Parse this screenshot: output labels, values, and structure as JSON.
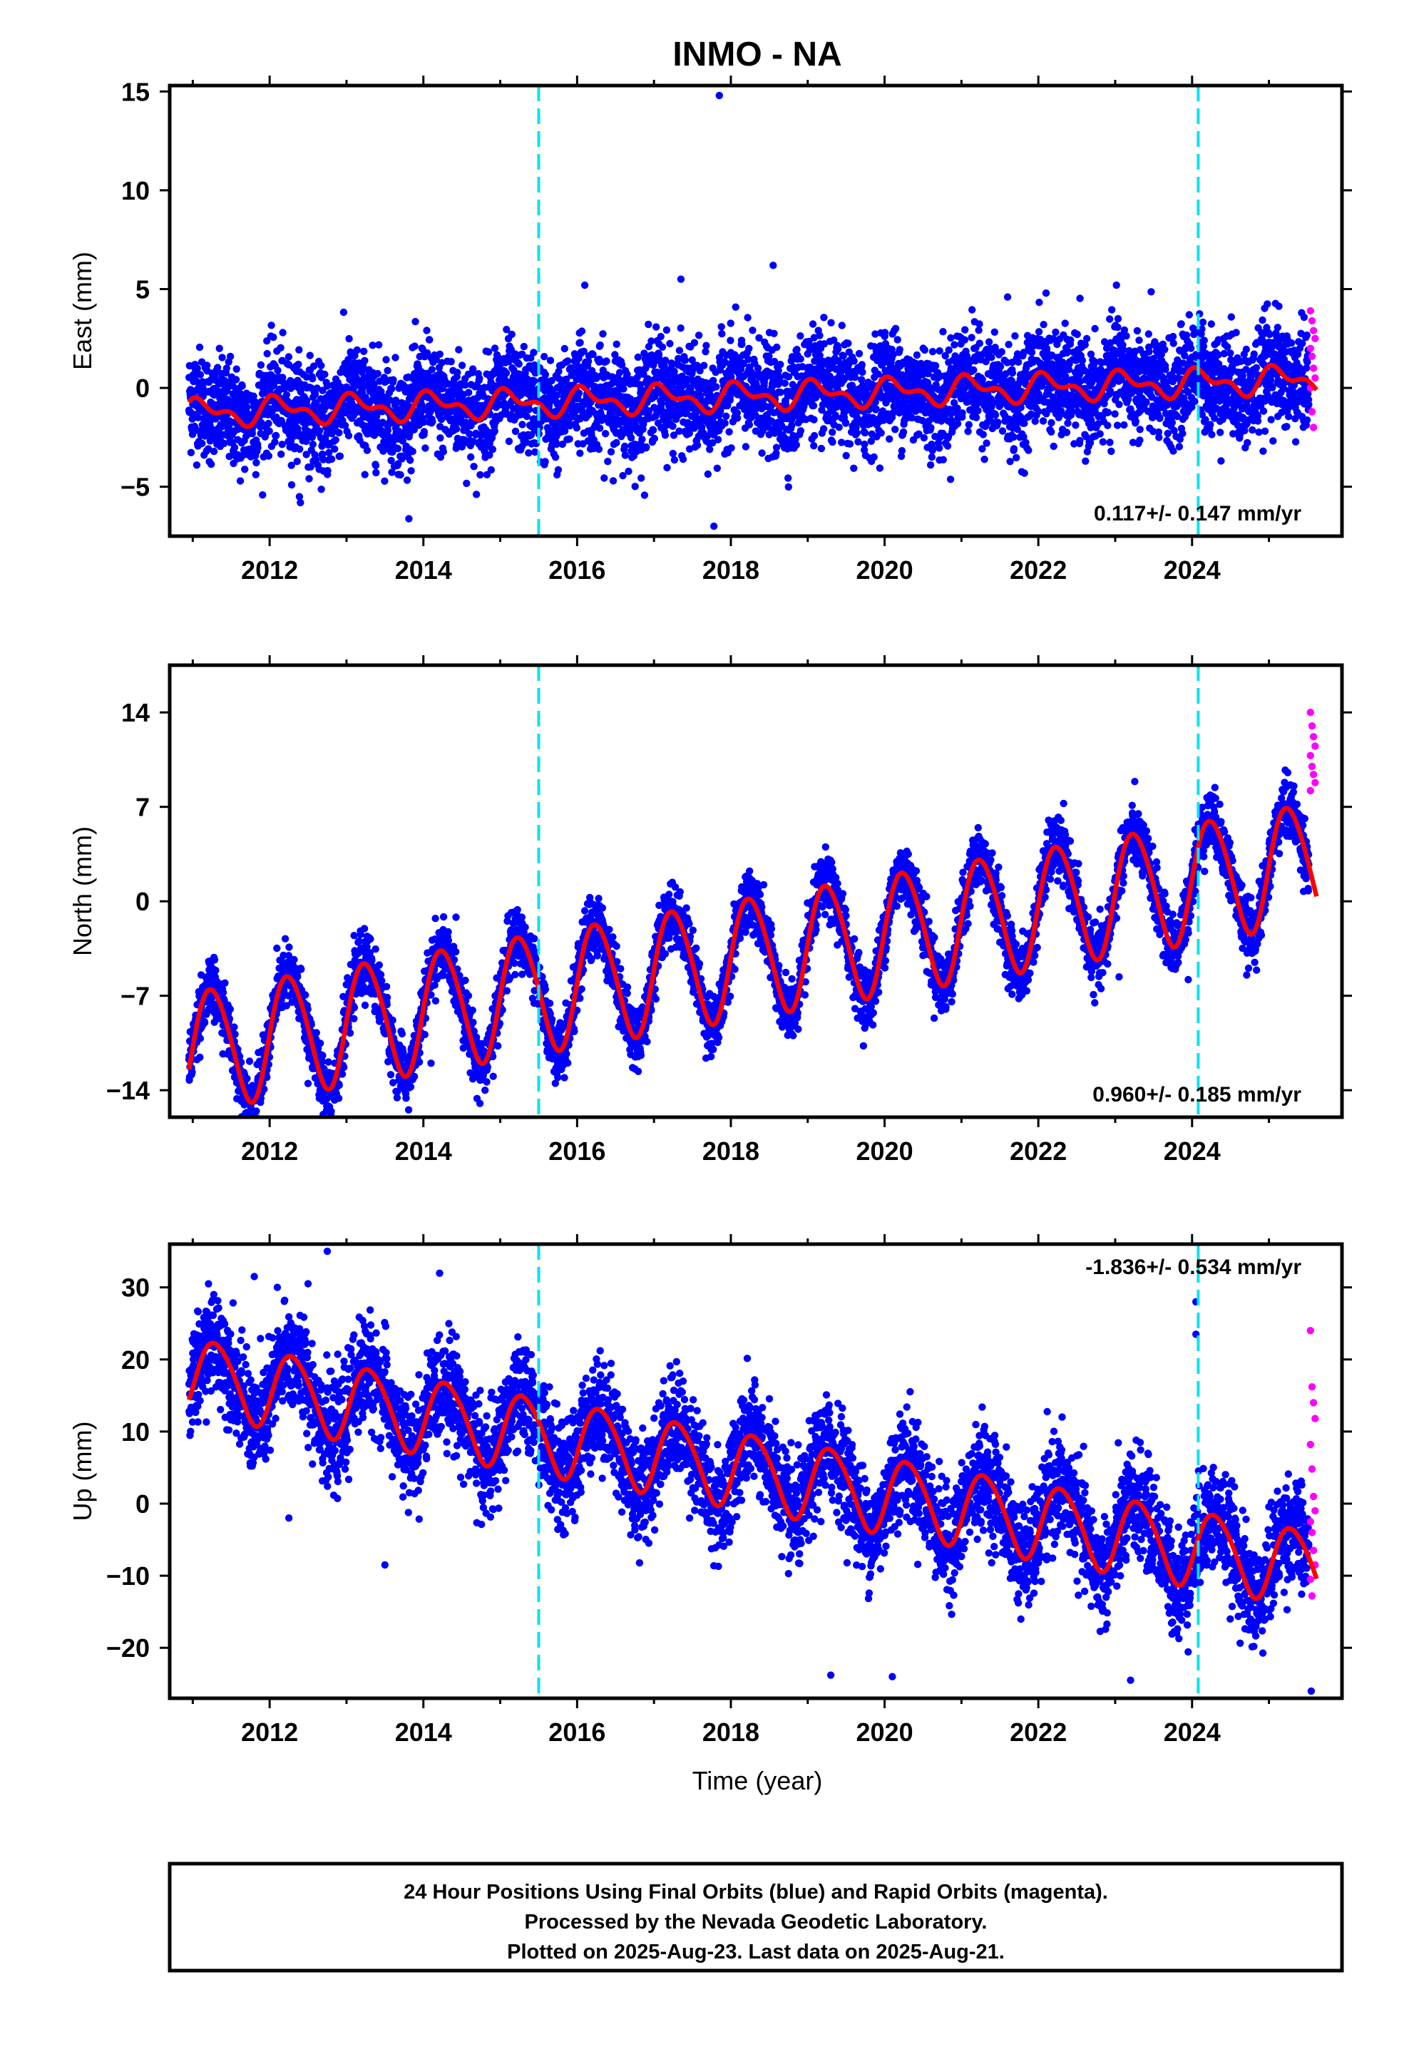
{
  "title": "INMO - NA",
  "xlabel": "Time (year)",
  "caption": [
    "24 Hour Positions Using Final Orbits (blue) and Rapid Orbits (magenta).",
    "Processed by the Nevada Geodetic Laboratory.",
    "Plotted on 2025-Aug-23. Last data on 2025-Aug-21."
  ],
  "colors": {
    "final_orbits": "#0000ff",
    "rapid_orbits": "#ff00ff",
    "model": "#ff0000",
    "equipment_change": "#00e5ee"
  },
  "chart_data": [
    {
      "type": "scatter",
      "panel": "east",
      "ylabel": "East (mm)",
      "ylim": [
        -7.5,
        15.3
      ],
      "yticks": [
        -5,
        0,
        5,
        10,
        15
      ],
      "xlim": [
        2010.7,
        2025.95
      ],
      "xticks": [
        2012,
        2014,
        2016,
        2018,
        2020,
        2022,
        2024
      ],
      "rate_label": "0.117+/- 0.147 mm/yr",
      "rate_position": "bottom-right",
      "model": {
        "intercept": -0.45,
        "slope": 0.117,
        "annual_amp": 0.55,
        "annual_phase": 0.8,
        "semiannual_amp": 0.35,
        "semiannual_phase": 1.6,
        "noise": 1.3
      },
      "outliers": [
        [
          2017.85,
          14.8
        ],
        [
          2018.55,
          6.2
        ],
        [
          2017.78,
          -7.0
        ],
        [
          2016.1,
          5.2
        ],
        [
          2017.35,
          5.5
        ],
        [
          2021.6,
          4.6
        ],
        [
          2022.1,
          4.8
        ],
        [
          2012.4,
          -5.8
        ]
      ],
      "rapid_values": [
        3.9,
        3.4,
        2.9,
        2.5,
        2.0,
        1.6,
        1.0,
        0.5,
        0.0,
        -1.2,
        -2.0
      ]
    },
    {
      "type": "scatter",
      "panel": "north",
      "ylabel": "North (mm)",
      "ylim": [
        -16.0,
        17.5
      ],
      "yticks": [
        -14,
        -7,
        0,
        7,
        14
      ],
      "xlim": [
        2010.7,
        2025.95
      ],
      "xticks": [
        2012,
        2014,
        2016,
        2018,
        2020,
        2022,
        2024
      ],
      "rate_label": "0.960+/- 0.185 mm/yr",
      "rate_position": "bottom-right",
      "model": {
        "intercept": -4.3,
        "slope": 0.96,
        "annual_amp": 4.4,
        "annual_phase": 0.0,
        "semiannual_amp": 0.4,
        "semiannual_phase": 0.5,
        "noise": 1.1
      },
      "outliers": [
        [
          2014.6,
          -10.5
        ],
        [
          2014.1,
          -12.0
        ],
        [
          2023.05,
          -5.6
        ],
        [
          2023.95,
          -5.8
        ],
        [
          2012.5,
          -13.5
        ]
      ],
      "rapid_values": [
        14.0,
        13.0,
        12.2,
        11.5,
        10.8,
        10.0,
        9.4,
        8.8,
        8.2
      ]
    },
    {
      "type": "scatter",
      "panel": "up",
      "ylabel": "Up (mm)",
      "ylim": [
        -27,
        36
      ],
      "yticks": [
        -20,
        -10,
        0,
        10,
        20,
        30
      ],
      "xlim": [
        2010.7,
        2025.95
      ],
      "xticks": [
        2012,
        2014,
        2016,
        2018,
        2020,
        2022,
        2024
      ],
      "rate_label": "-1.836+/- 0.534 mm/yr",
      "rate_position": "top-right",
      "model": {
        "intercept": 5.0,
        "slope": -1.836,
        "annual_amp": 5.2,
        "annual_phase": -0.35,
        "semiannual_amp": 0.6,
        "semiannual_phase": 0.0,
        "noise": 3.6
      },
      "outliers": [
        [
          2012.75,
          35.0
        ],
        [
          2012.5,
          30.5
        ],
        [
          2011.8,
          31.5
        ],
        [
          2012.1,
          30.0
        ],
        [
          2024.05,
          28.0
        ],
        [
          2024.05,
          23.5
        ],
        [
          2019.3,
          -23.8
        ],
        [
          2025.55,
          -26.0
        ],
        [
          2023.2,
          -24.5
        ],
        [
          2020.1,
          -24.0
        ],
        [
          2012.25,
          -2.0
        ],
        [
          2013.5,
          -8.5
        ]
      ],
      "rapid_values": [
        24.0,
        16.2,
        14.0,
        11.8,
        8.2,
        4.8,
        1.0,
        -1.0,
        -2.5,
        -4.0,
        -6.5,
        -8.5,
        -10.5,
        -12.8
      ]
    }
  ],
  "equipment_changes": [
    2015.5,
    2024.08
  ]
}
